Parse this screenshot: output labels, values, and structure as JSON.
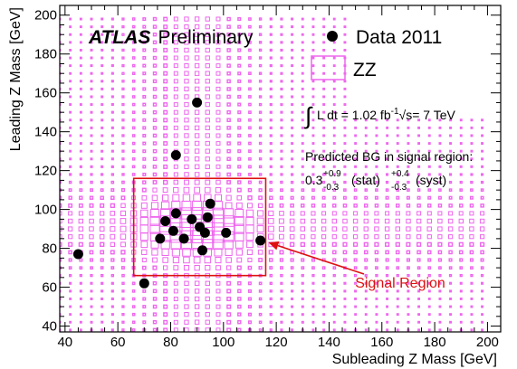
{
  "chart_data": {
    "type": "scatter",
    "title": "",
    "experiment": "ATLAS",
    "experiment_tag": "Preliminary",
    "xlabel": "Subleading Z Mass [GeV]",
    "ylabel": "Leading Z Mass [GeV]",
    "xlim": [
      38,
      205
    ],
    "ylim": [
      37,
      205
    ],
    "xticks": [
      40,
      60,
      80,
      100,
      120,
      140,
      160,
      180,
      200
    ],
    "yticks": [
      40,
      60,
      80,
      100,
      120,
      140,
      160,
      180,
      200
    ],
    "xtick_labels": [
      "40",
      "60",
      "80",
      "100",
      "120",
      "140",
      "160",
      "180",
      "200"
    ],
    "ytick_labels": [
      "40",
      "60",
      "80",
      "100",
      "120",
      "140",
      "160",
      "180",
      "200"
    ],
    "grid": false,
    "legend_position": "top-right",
    "series": [
      {
        "name": "Data 2011",
        "marker": "circle",
        "color": "#000000",
        "points": [
          [
            45,
            77
          ],
          [
            70,
            62
          ],
          [
            76,
            85
          ],
          [
            78,
            94
          ],
          [
            81,
            89
          ],
          [
            82,
            98
          ],
          [
            82,
            128
          ],
          [
            85,
            85
          ],
          [
            88,
            95
          ],
          [
            90,
            155
          ],
          [
            91,
            91
          ],
          [
            92,
            79
          ],
          [
            93,
            88
          ],
          [
            94,
            96
          ],
          [
            95,
            103
          ],
          [
            101,
            88
          ],
          [
            114,
            84
          ]
        ]
      },
      {
        "name": "ZZ",
        "marker": "box",
        "color": "#ee66ee"
      }
    ],
    "signal_region": {
      "x": [
        66,
        116
      ],
      "y": [
        66,
        116
      ],
      "color": "#dd1111",
      "label": "Signal Region"
    },
    "annotations": {
      "lumi_integral": "∫",
      "lumi_text": "L dt = 1.02 fb",
      "lumi_exp": "-1",
      "energy_text": "√s= 7 TeV",
      "bg_title": "Predicted BG in signal region:",
      "bg_value": "0.3",
      "bg_stat_up": "+0.9",
      "bg_stat_down": "-0.3",
      "bg_stat_label": "(stat)",
      "bg_syst_up": "+0.4",
      "bg_syst_down": "-0.3",
      "bg_syst_label": "(syst)"
    }
  }
}
